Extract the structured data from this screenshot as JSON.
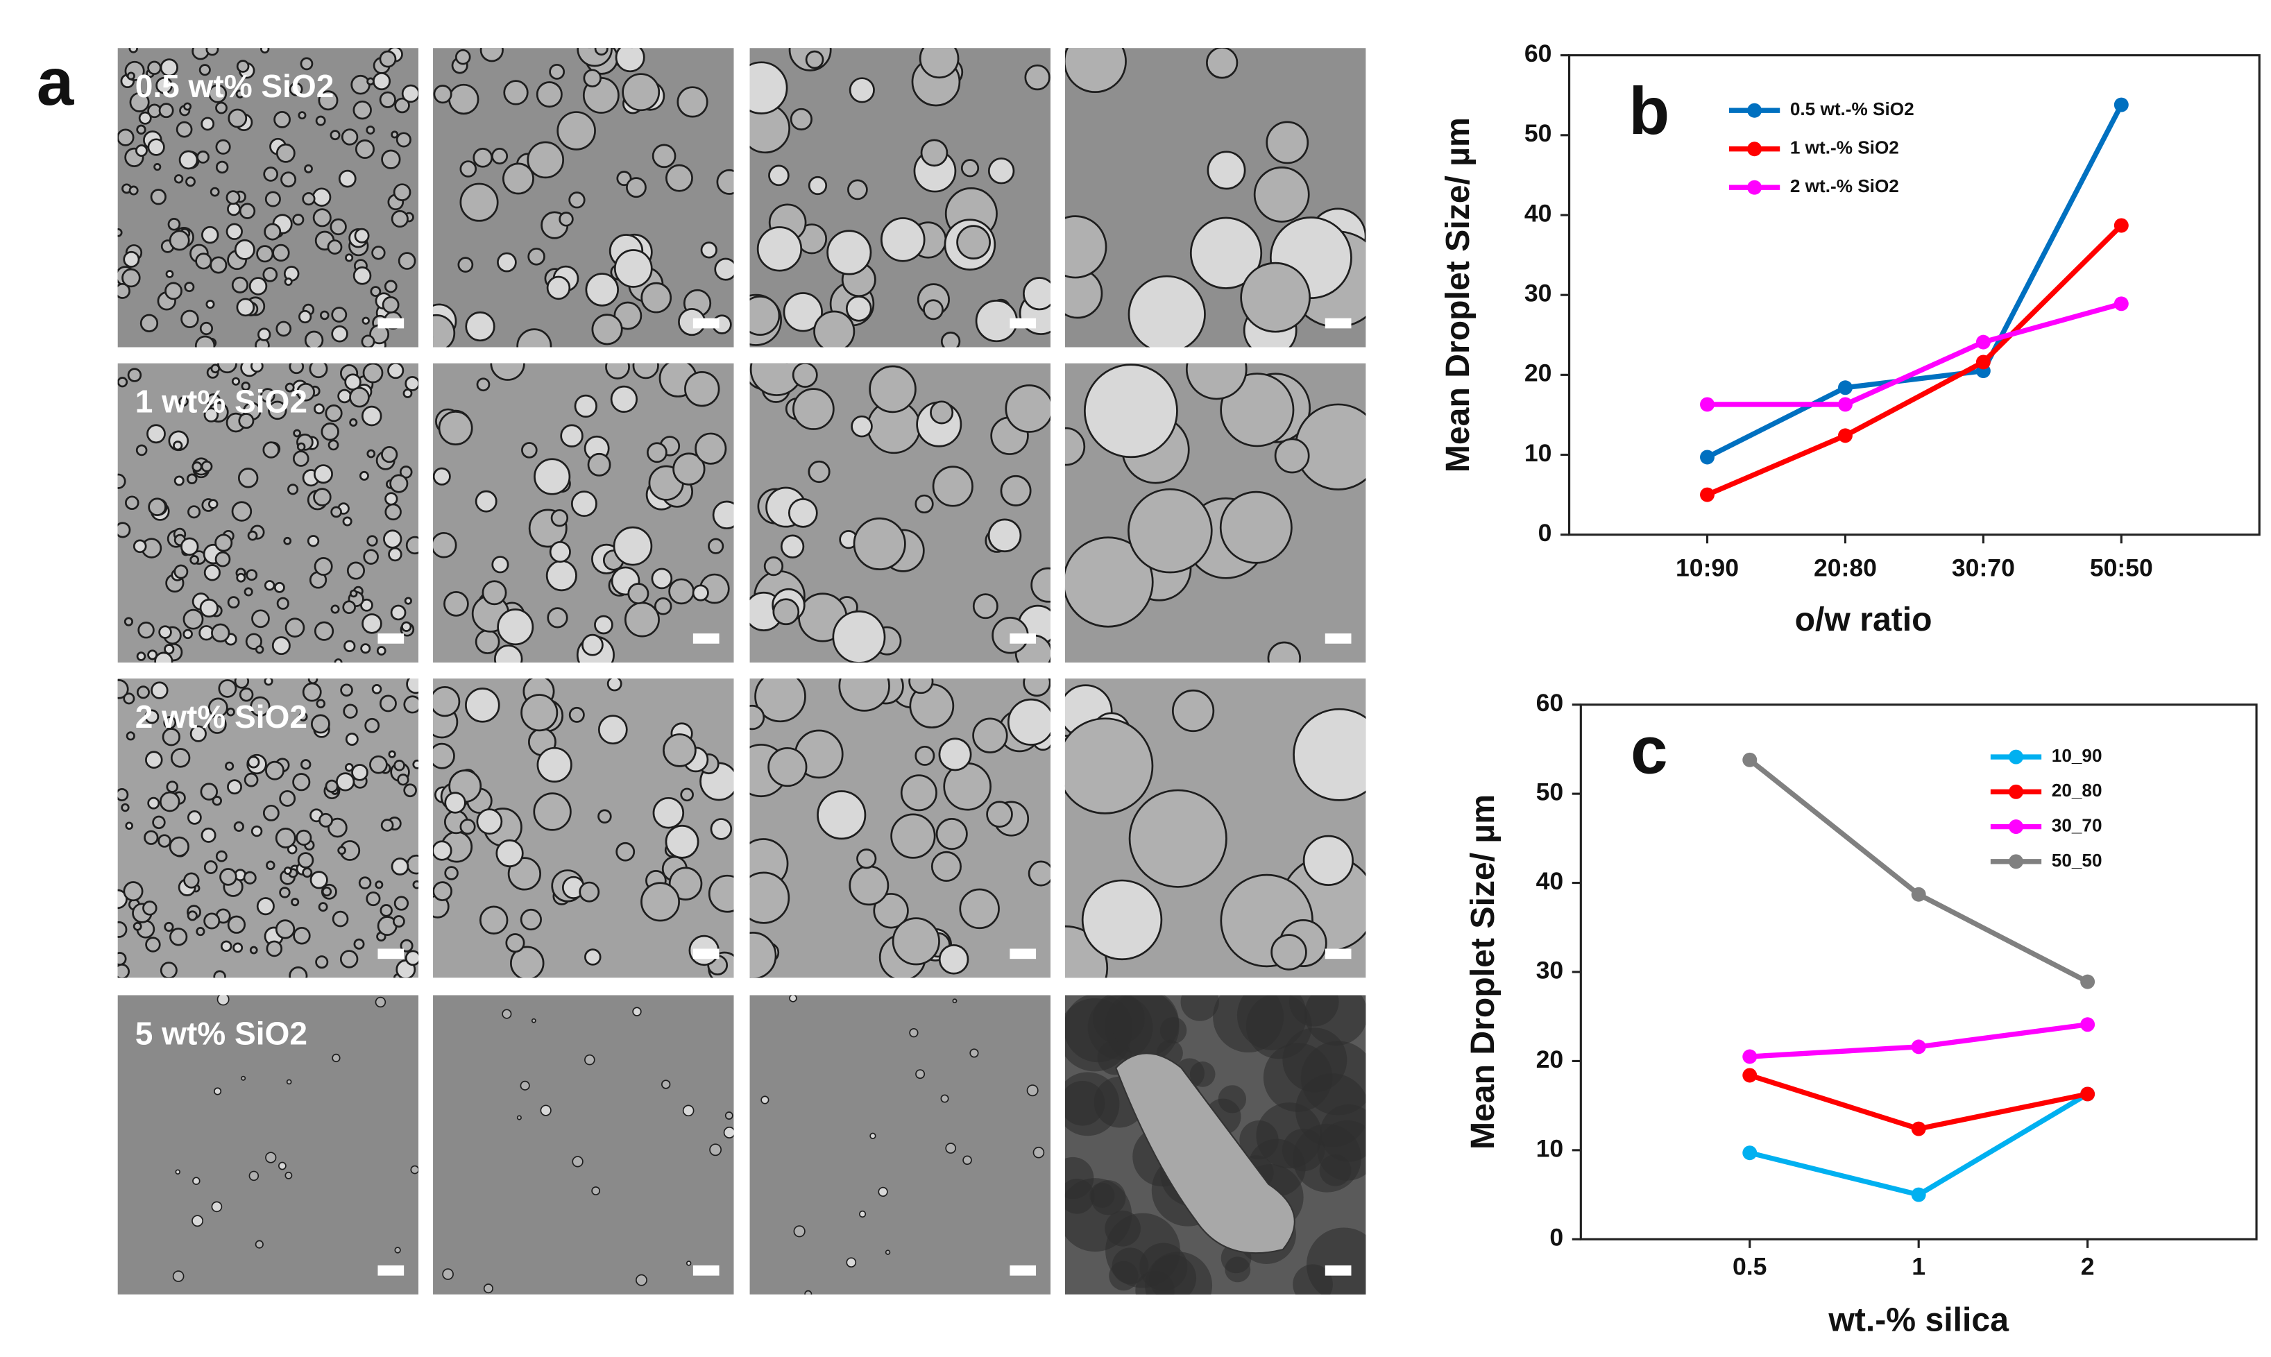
{
  "figure": {
    "panel_label": "a",
    "row_labels": [
      "0.5 wt% SiO2",
      "1 wt% SiO2",
      "2 wt% SiO2",
      "5 wt% SiO2"
    ]
  },
  "chart_data": [
    {
      "type": "line",
      "panel_label": "b",
      "x_label": "o/w ratio",
      "y_label": "Mean Droplet Size/ µm",
      "categories": [
        "10:90",
        "20:80",
        "30:70",
        "50:50"
      ],
      "series": [
        {
          "name": "0.5 wt.-% SiO2",
          "color": "#0070c0",
          "values": [
            9.7,
            18.4,
            20.5,
            53.8
          ]
        },
        {
          "name": "1 wt.-% SiO2",
          "color": "#ff0000",
          "values": [
            5.0,
            12.4,
            21.6,
            38.7
          ]
        },
        {
          "name": "2 wt.-% SiO2",
          "color": "#ff00ff",
          "values": [
            16.3,
            16.3,
            24.1,
            28.9
          ]
        }
      ],
      "ylim": [
        0,
        60
      ],
      "yticks": [
        0,
        10,
        20,
        30,
        40,
        50,
        60
      ]
    },
    {
      "type": "line",
      "panel_label": "c",
      "x_label": "wt.-% silica",
      "y_label": "Mean Droplet Size/ µm",
      "categories": [
        "0.5",
        "1",
        "2"
      ],
      "series": [
        {
          "name": "10_90",
          "color": "#00b0f0",
          "values": [
            9.7,
            5.0,
            16.3
          ]
        },
        {
          "name": "20_80",
          "color": "#ff0000",
          "values": [
            18.4,
            12.4,
            16.3
          ]
        },
        {
          "name": "30_70",
          "color": "#ff00ff",
          "values": [
            20.5,
            21.6,
            24.1
          ]
        },
        {
          "name": "50_50",
          "color": "#808080",
          "values": [
            53.8,
            38.7,
            28.9
          ]
        }
      ],
      "ylim": [
        0,
        60
      ],
      "yticks": [
        0,
        10,
        20,
        30,
        40,
        50,
        60
      ]
    }
  ]
}
